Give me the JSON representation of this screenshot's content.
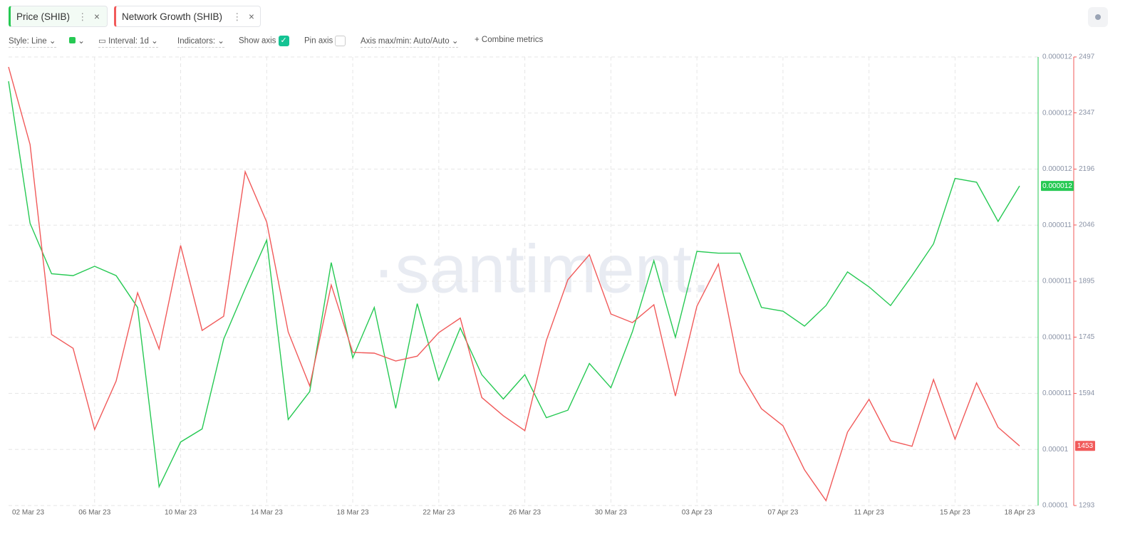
{
  "toolbar": {
    "style": "Style: Line",
    "interval": "Interval: 1d",
    "indicators": "Indicators:",
    "show_axis": "Show axis",
    "pin_axis": "Pin axis",
    "axis_maxmin": "Axis max/min: Auto/Auto",
    "combine": "Combine metrics"
  },
  "watermark": "·santiment.",
  "chart_data": {
    "type": "line",
    "grid": true,
    "categories": [
      "02 Mar 23",
      null,
      null,
      null,
      "06 Mar 23",
      null,
      null,
      null,
      "10 Mar 23",
      null,
      null,
      null,
      "14 Mar 23",
      null,
      null,
      null,
      "18 Mar 23",
      null,
      null,
      null,
      "22 Mar 23",
      null,
      null,
      null,
      "26 Mar 23",
      null,
      null,
      null,
      "30 Mar 23",
      null,
      null,
      null,
      "03 Apr 23",
      null,
      null,
      null,
      "07 Apr 23",
      null,
      null,
      null,
      "11 Apr 23",
      null,
      null,
      null,
      "15 Apr 23",
      null,
      null,
      "18 Apr 23"
    ],
    "series": [
      {
        "name": "Price (SHIB)",
        "color": "#26c953",
        "axis": "y",
        "last_value_label": "0.000012",
        "values": [
          1.219e-05,
          1.143e-05,
          1.116e-05,
          1.115e-05,
          1.12e-05,
          1.115e-05,
          1.098e-05,
          1.002e-05,
          1.026e-05,
          1.033e-05,
          1.081e-05,
          1.108e-05,
          1.134e-05,
          1.038e-05,
          1.053e-05,
          1.122e-05,
          1.071e-05,
          1.098e-05,
          1.044e-05,
          1.1e-05,
          1.059e-05,
          1.087e-05,
          1.062e-05,
          1.049e-05,
          1.062e-05,
          1.039e-05,
          1.043e-05,
          1.068e-05,
          1.055e-05,
          1.085e-05,
          1.123e-05,
          1.082e-05,
          1.128e-05,
          1.127e-05,
          1.127e-05,
          1.098e-05,
          1.096e-05,
          1.088e-05,
          1.099e-05,
          1.117e-05,
          1.109e-05,
          1.099e-05,
          1.115e-05,
          1.132e-05,
          1.167e-05,
          1.165e-05,
          1.144e-05,
          1.163e-05
        ]
      },
      {
        "name": "Network Growth (SHIB)",
        "color": "#f15a5a",
        "axis": "y2",
        "last_value_label": "1453",
        "values": [
          2470,
          2262,
          1752,
          1715,
          1497,
          1627,
          1864,
          1713,
          1991,
          1763,
          1801,
          2189,
          2054,
          1759,
          1614,
          1885,
          1704,
          1702,
          1681,
          1694,
          1757,
          1796,
          1583,
          1534,
          1494,
          1736,
          1899,
          1966,
          1807,
          1784,
          1832,
          1587,
          1828,
          1941,
          1650,
          1553,
          1507,
          1389,
          1306,
          1490,
          1578,
          1467,
          1452,
          1631,
          1471,
          1622,
          1503,
          1453
        ]
      }
    ],
    "ylim": [
      9.92e-06,
      1.232e-05
    ],
    "yticks": [
      {
        "value": 9.92e-06,
        "label": "0.00001"
      },
      {
        "value": 1.022e-05,
        "label": "0.00001"
      },
      {
        "value": 1.052e-05,
        "label": "0.000011"
      },
      {
        "value": 1.082e-05,
        "label": "0.000011"
      },
      {
        "value": 1.112e-05,
        "label": "0.000011"
      },
      {
        "value": 1.142e-05,
        "label": "0.000011"
      },
      {
        "value": 1.172e-05,
        "label": "0.000012"
      },
      {
        "value": 1.202e-05,
        "label": "0.000012"
      },
      {
        "value": 1.232e-05,
        "label": "0.000012"
      }
    ],
    "y2lim": [
      1293,
      2497
    ],
    "y2ticks": [
      1293,
      1594,
      1745,
      1895,
      2046,
      2196,
      2347,
      2497
    ]
  }
}
